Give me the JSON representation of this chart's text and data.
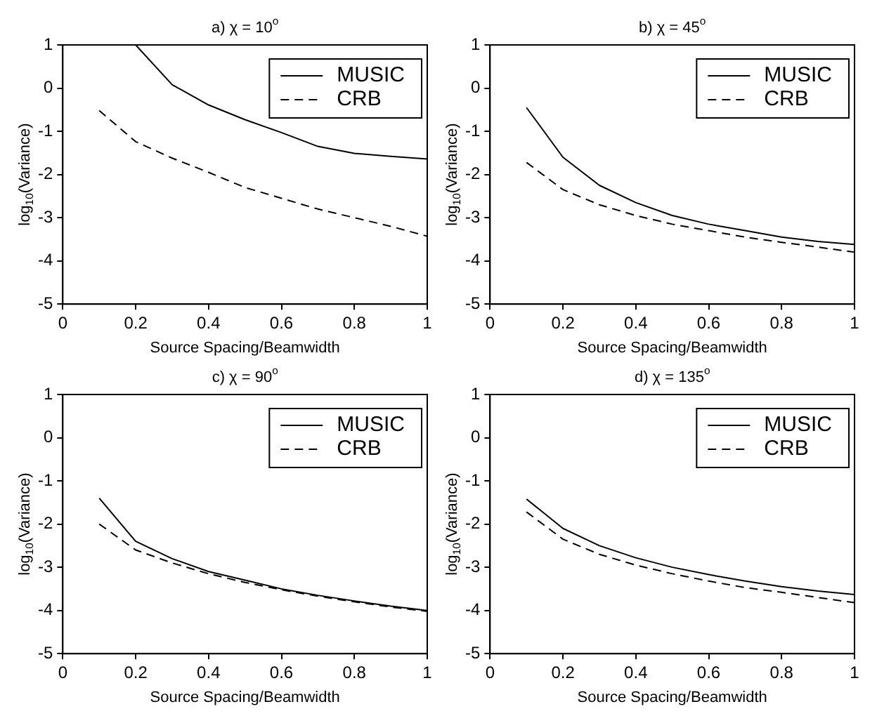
{
  "chart_data": [
    {
      "type": "line",
      "title": "a) χ = 10$^{o}$",
      "xlabel": "Source Spacing/Beamwidth",
      "ylabel": "log$_{10}$(Variance)",
      "x": [
        0.1,
        0.2,
        0.3,
        0.4,
        0.5,
        0.6,
        0.7,
        0.8,
        0.9,
        1.0
      ],
      "xlim": [
        0,
        1
      ],
      "xticks": [
        0,
        0.2,
        0.4,
        0.6,
        0.8,
        1
      ],
      "ylim": [
        -5,
        1
      ],
      "yticks": [
        -5,
        -4,
        -3,
        -2,
        -1,
        0,
        1
      ],
      "grid": false,
      "legend": "top right",
      "marker": "none",
      "series": [
        {
          "name": "MUSIC",
          "color": "#000000",
          "line_style": "solid",
          "x": [
            0.2,
            0.3,
            0.4,
            0.5,
            0.6,
            0.7,
            0.8,
            0.9,
            1.0
          ],
          "values": [
            1.0,
            0.08,
            -0.39,
            -0.73,
            -1.03,
            -1.35,
            -1.51,
            -1.58,
            -1.64
          ]
        },
        {
          "name": "CRB",
          "color": "#000000",
          "line_style": "dashed",
          "values": [
            -0.52,
            -1.24,
            -1.62,
            -1.95,
            -2.3,
            -2.55,
            -2.8,
            -3.0,
            -3.2,
            -3.43
          ]
        }
      ]
    },
    {
      "type": "line",
      "title": "b) χ = 45$^{o}$",
      "xlabel": "Source Spacing/Beamwidth",
      "ylabel": "log$_{10}$(Variance)",
      "x": [
        0.1,
        0.2,
        0.3,
        0.4,
        0.5,
        0.6,
        0.7,
        0.8,
        0.9,
        1.0
      ],
      "xlim": [
        0,
        1
      ],
      "xticks": [
        0,
        0.2,
        0.4,
        0.6,
        0.8,
        1
      ],
      "ylim": [
        -5,
        1
      ],
      "yticks": [
        -5,
        -4,
        -3,
        -2,
        -1,
        0,
        1
      ],
      "grid": false,
      "legend": "top right",
      "marker": "none",
      "series": [
        {
          "name": "MUSIC",
          "color": "#000000",
          "line_style": "solid",
          "values": [
            -0.45,
            -1.6,
            -2.25,
            -2.65,
            -2.95,
            -3.15,
            -3.3,
            -3.45,
            -3.55,
            -3.62
          ]
        },
        {
          "name": "CRB",
          "color": "#000000",
          "line_style": "dashed",
          "values": [
            -1.72,
            -2.35,
            -2.7,
            -2.95,
            -3.15,
            -3.3,
            -3.45,
            -3.57,
            -3.68,
            -3.8
          ]
        }
      ]
    },
    {
      "type": "line",
      "title": "c) χ = 90$^{o}$",
      "xlabel": "Source Spacing/Beamwidth",
      "ylabel": "log$_{10}$(Variance)",
      "x": [
        0.1,
        0.2,
        0.3,
        0.4,
        0.5,
        0.6,
        0.7,
        0.8,
        0.9,
        1.0
      ],
      "xlim": [
        0,
        1
      ],
      "xticks": [
        0,
        0.2,
        0.4,
        0.6,
        0.8,
        1
      ],
      "ylim": [
        -5,
        1
      ],
      "yticks": [
        -5,
        -4,
        -3,
        -2,
        -1,
        0,
        1
      ],
      "grid": false,
      "legend": "top right",
      "marker": "none",
      "series": [
        {
          "name": "MUSIC",
          "color": "#000000",
          "line_style": "solid",
          "values": [
            -1.4,
            -2.4,
            -2.8,
            -3.1,
            -3.3,
            -3.5,
            -3.65,
            -3.78,
            -3.9,
            -4.0
          ]
        },
        {
          "name": "CRB",
          "color": "#000000",
          "line_style": "dashed",
          "values": [
            -2.0,
            -2.6,
            -2.9,
            -3.15,
            -3.35,
            -3.52,
            -3.67,
            -3.8,
            -3.92,
            -4.02
          ]
        }
      ]
    },
    {
      "type": "line",
      "title": "d) χ = 135$^{o}$",
      "xlabel": "Source Spacing/Beamwidth",
      "ylabel": "log$_{10}$(Variance)",
      "x": [
        0.1,
        0.2,
        0.3,
        0.4,
        0.5,
        0.6,
        0.7,
        0.8,
        0.9,
        1.0
      ],
      "xlim": [
        0,
        1
      ],
      "xticks": [
        0,
        0.2,
        0.4,
        0.6,
        0.8,
        1
      ],
      "ylim": [
        -5,
        1
      ],
      "yticks": [
        -5,
        -4,
        -3,
        -2,
        -1,
        0,
        1
      ],
      "grid": false,
      "legend": "top right",
      "marker": "none",
      "series": [
        {
          "name": "MUSIC",
          "color": "#000000",
          "line_style": "solid",
          "values": [
            -1.42,
            -2.1,
            -2.5,
            -2.78,
            -3.0,
            -3.17,
            -3.32,
            -3.45,
            -3.55,
            -3.63
          ]
        },
        {
          "name": "CRB",
          "color": "#000000",
          "line_style": "dashed",
          "values": [
            -1.72,
            -2.35,
            -2.7,
            -2.95,
            -3.15,
            -3.32,
            -3.47,
            -3.58,
            -3.7,
            -3.82
          ]
        }
      ]
    }
  ]
}
